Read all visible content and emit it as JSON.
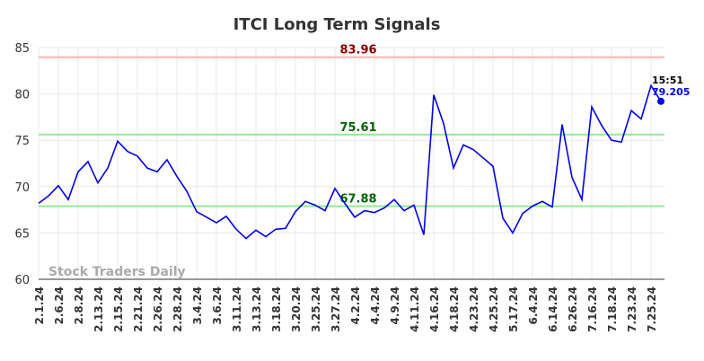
{
  "chart_data": {
    "type": "line",
    "title": "ITCI Long Term Signals",
    "categories": [
      "2.1.24",
      null,
      "2.6.24",
      null,
      "2.8.24",
      null,
      "2.13.24",
      null,
      "2.15.24",
      null,
      "2.21.24",
      null,
      "2.26.24",
      null,
      "2.28.24",
      null,
      "3.4.24",
      null,
      "3.6.24",
      null,
      "3.11.24",
      null,
      "3.13.24",
      null,
      "3.18.24",
      null,
      "3.20.24",
      null,
      "3.25.24",
      null,
      "3.27.24",
      null,
      "4.2.24",
      null,
      "4.4.24",
      null,
      "4.9.24",
      null,
      "4.11.24",
      null,
      "4.16.24",
      null,
      "4.18.24",
      null,
      "4.23.24",
      null,
      "4.25.24",
      null,
      "5.17.24",
      null,
      "6.4.24",
      null,
      "6.14.24",
      null,
      "6.26.24",
      null,
      "7.16.24",
      null,
      "7.18.24",
      null,
      "7.23.24",
      null,
      "7.25.24",
      null
    ],
    "series": [
      {
        "name": "ITCI",
        "color": "#0000ee",
        "values": [
          68.2,
          69.0,
          70.1,
          68.6,
          71.6,
          72.7,
          70.4,
          72.0,
          74.9,
          73.8,
          73.3,
          72.0,
          71.6,
          72.9,
          71.1,
          69.5,
          67.3,
          66.7,
          66.1,
          66.8,
          65.4,
          64.4,
          65.3,
          64.6,
          65.4,
          65.5,
          67.3,
          68.4,
          68.0,
          67.4,
          69.8,
          68.2,
          66.7,
          67.4,
          67.2,
          67.7,
          68.6,
          67.4,
          68.0,
          64.8,
          79.9,
          76.8,
          72.0,
          74.5,
          74.0,
          73.1,
          72.2,
          66.6,
          65.0,
          67.1,
          67.9,
          68.4,
          67.8,
          76.7,
          71.0,
          68.6,
          78.6,
          76.6,
          75.0,
          74.8,
          78.2,
          77.3,
          80.9,
          79.205
        ]
      }
    ],
    "reference_lines": [
      {
        "value": 83.96,
        "color": "#ffb3b3",
        "label_color": "#8b0000"
      },
      {
        "value": 75.61,
        "color": "#90ee90",
        "label_color": "#006400"
      },
      {
        "value": 67.88,
        "color": "#90ee90",
        "label_color": "#006400"
      }
    ],
    "last_point_annotation": "15:51",
    "watermark": "Stock Traders Daily",
    "ylim": [
      60,
      85
    ],
    "yticks": [
      60,
      65,
      70,
      75,
      80,
      85
    ],
    "grid": true
  }
}
